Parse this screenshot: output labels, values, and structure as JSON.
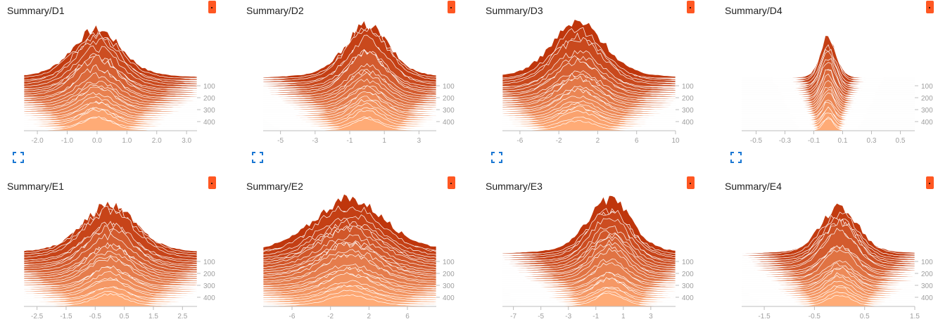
{
  "chart_data": [
    {
      "type": "histogram",
      "title": "Summary/D1",
      "mode": "offset",
      "color": "#ff7043",
      "x_ticks": [
        "-2.0",
        "-1.0",
        "0.0",
        "1.0",
        "2.0",
        "3.0"
      ],
      "xlim": [
        -2.45,
        3.35
      ],
      "y_ticks": [
        "100",
        "200",
        "300",
        "400"
      ],
      "steps": [
        0,
        500
      ],
      "distribution": {
        "peak": 0.0,
        "spread": 0.5,
        "tail": 0.9
      }
    },
    {
      "type": "histogram",
      "title": "Summary/D2",
      "mode": "offset",
      "color": "#ff7043",
      "x_ticks": [
        "-5",
        "-3",
        "-1",
        "1",
        "3"
      ],
      "xlim": [
        -6.0,
        4.0
      ],
      "y_ticks": [
        "100",
        "200",
        "300",
        "400"
      ],
      "steps": [
        0,
        500
      ],
      "distribution": {
        "peak": 0.0,
        "spread": 0.45,
        "tail": 0.9
      }
    },
    {
      "type": "histogram",
      "title": "Summary/D3",
      "mode": "offset",
      "color": "#ff7043",
      "x_ticks": [
        "-6",
        "-2",
        "2",
        "6",
        "10"
      ],
      "xlim": [
        -7.8,
        10.0
      ],
      "y_ticks": [
        "100",
        "200",
        "300",
        "400"
      ],
      "steps": [
        0,
        500
      ],
      "distribution": {
        "peak": 0.0,
        "spread": 0.55,
        "tail": 0.7
      }
    },
    {
      "type": "histogram",
      "title": "Summary/D4",
      "mode": "offset",
      "color": "#ff7043",
      "x_ticks": [
        "-0.5",
        "-0.3",
        "-0.1",
        "0.1",
        "0.3",
        "0.5"
      ],
      "xlim": [
        -0.6,
        0.6
      ],
      "y_ticks": [
        "100",
        "200",
        "300",
        "400"
      ],
      "steps": [
        0,
        500
      ],
      "distribution": {
        "peak": 0.0,
        "spread": 0.17,
        "tail": 0.4
      }
    },
    {
      "type": "histogram",
      "title": "Summary/E1",
      "mode": "offset",
      "color": "#ff7043",
      "x_ticks": [
        "-2.5",
        "-1.5",
        "-0.5",
        "0.5",
        "1.5",
        "2.5"
      ],
      "xlim": [
        -2.95,
        3.0
      ],
      "y_ticks": [
        "100",
        "200",
        "300",
        "400"
      ],
      "steps": [
        0,
        500
      ],
      "distribution": {
        "peak": 0.0,
        "spread": 0.55,
        "tail": 1.0
      }
    },
    {
      "type": "histogram",
      "title": "Summary/E2",
      "mode": "offset",
      "color": "#ff7043",
      "x_ticks": [
        "-6",
        "-2",
        "2",
        "6"
      ],
      "xlim": [
        -9.0,
        9.0
      ],
      "y_ticks": [
        "100",
        "200",
        "300",
        "400"
      ],
      "steps": [
        0,
        500
      ],
      "distribution": {
        "peak": 0.0,
        "spread": 0.7,
        "tail": 1.4
      }
    },
    {
      "type": "histogram",
      "title": "Summary/E3",
      "mode": "offset",
      "color": "#ff7043",
      "x_ticks": [
        "-7",
        "-5",
        "-3",
        "-1",
        "1",
        "3"
      ],
      "xlim": [
        -7.8,
        4.8
      ],
      "y_ticks": [
        "100",
        "200",
        "300",
        "400"
      ],
      "steps": [
        0,
        500
      ],
      "distribution": {
        "peak": 0.0,
        "spread": 0.45,
        "tail": 0.8
      }
    },
    {
      "type": "histogram",
      "title": "Summary/E4",
      "mode": "offset",
      "color": "#ff7043",
      "x_ticks": [
        "-1.5",
        "-0.5",
        "0.5",
        "1.5"
      ],
      "xlim": [
        -1.95,
        1.5
      ],
      "y_ticks": [
        "100",
        "200",
        "300",
        "400"
      ],
      "steps": [
        0,
        500
      ],
      "distribution": {
        "peak": 0.0,
        "spread": 0.4,
        "tail": 0.75
      }
    }
  ]
}
